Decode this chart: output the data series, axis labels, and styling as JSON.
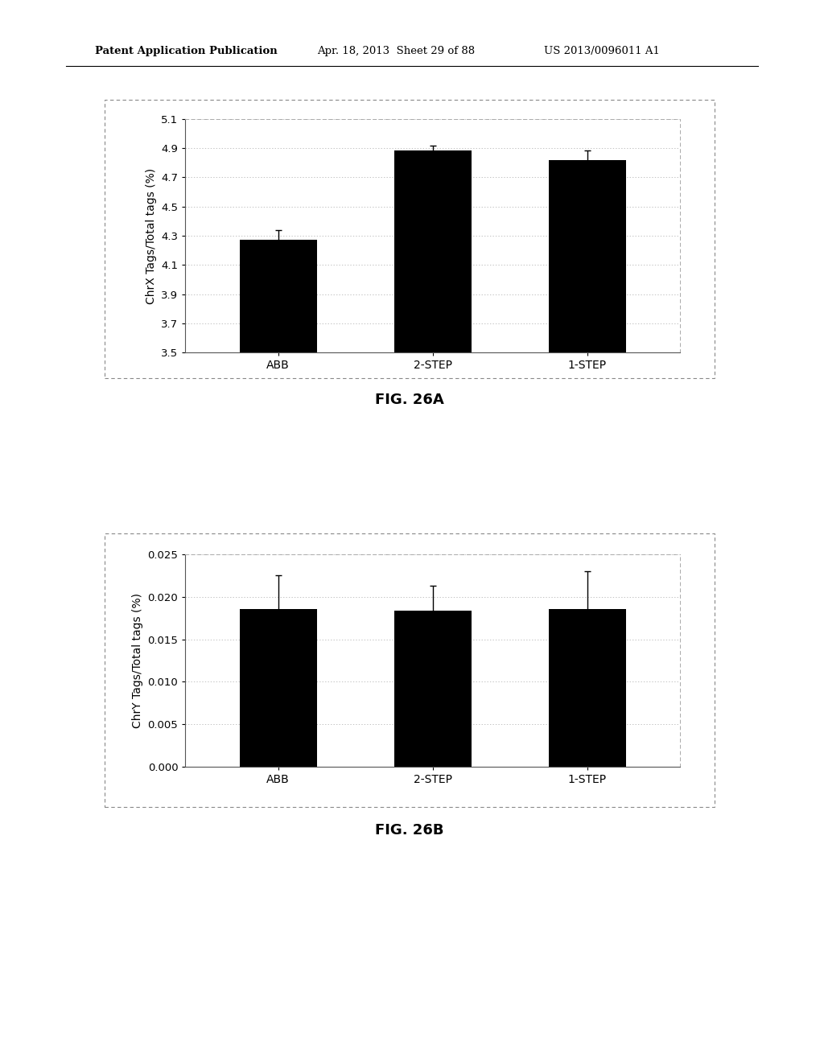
{
  "fig26a": {
    "categories": [
      "ABB",
      "2-STEP",
      "1-STEP"
    ],
    "values": [
      4.275,
      4.885,
      4.82
    ],
    "errors": [
      0.065,
      0.03,
      0.065
    ],
    "ylabel": "ChrX Tags/Total tags (%)",
    "ylim": [
      3.5,
      5.1
    ],
    "yticks": [
      3.5,
      3.7,
      3.9,
      4.1,
      4.3,
      4.5,
      4.7,
      4.9,
      5.1
    ],
    "bar_color": "#000000",
    "bar_width": 0.5,
    "fig_label": "FIG. 26A"
  },
  "fig26b": {
    "categories": [
      "ABB",
      "2-STEP",
      "1-STEP"
    ],
    "values": [
      0.01855,
      0.01835,
      0.01855
    ],
    "errors": [
      0.004,
      0.003,
      0.0045
    ],
    "ylabel": "ChrY Tags/Total tags (%)",
    "ylim": [
      0.0,
      0.025
    ],
    "yticks": [
      0.0,
      0.005,
      0.01,
      0.015,
      0.02,
      0.025
    ],
    "bar_color": "#000000",
    "bar_width": 0.5,
    "fig_label": "FIG. 26B"
  },
  "header_left": "Patent Application Publication",
  "header_mid": "Apr. 18, 2013  Sheet 29 of 88",
  "header_right": "US 2013/0096011 A1",
  "background_color": "#ffffff"
}
